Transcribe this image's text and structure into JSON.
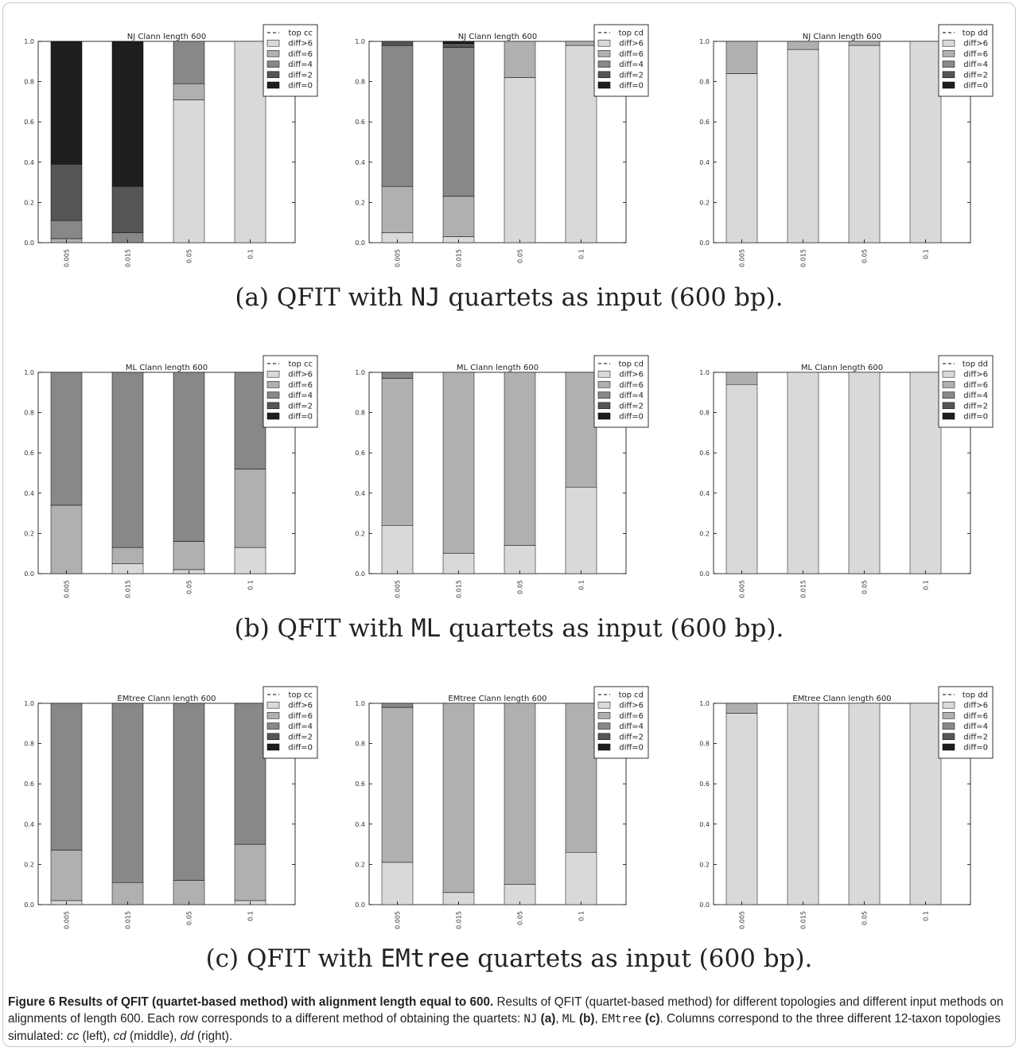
{
  "figure": {
    "rows": [
      {
        "subcaption_pre": "(a) QFIT with ",
        "subcaption_mono": "NJ",
        "subcaption_post": " quartets as input (600 bp).",
        "charts": [
          {
            "title": "NJ Clann length 600",
            "legend_top": "top cc"
          },
          {
            "title": "NJ Clann length 600",
            "legend_top": "top cd"
          },
          {
            "title": "NJ Clann length 600",
            "legend_top": "top dd"
          }
        ]
      },
      {
        "subcaption_pre": "(b) QFIT with ",
        "subcaption_mono": "ML",
        "subcaption_post": " quartets as input (600 bp).",
        "charts": [
          {
            "title": "ML Clann length 600",
            "legend_top": "top cc"
          },
          {
            "title": "ML Clann length 600",
            "legend_top": "top cd"
          },
          {
            "title": "ML Clann length 600",
            "legend_top": "top dd"
          }
        ]
      },
      {
        "subcaption_pre": "(c) QFIT with ",
        "subcaption_mono": "EMtree",
        "subcaption_post": " quartets as input (600 bp).",
        "charts": [
          {
            "title": "EMtree Clann length 600",
            "legend_top": "top cc"
          },
          {
            "title": "EMtree Clann length 600",
            "legend_top": "top cd"
          },
          {
            "title": "EMtree Clann length 600",
            "legend_top": "top dd"
          }
        ]
      }
    ],
    "colors": {
      "diff>6": "#d9d9d9",
      "diff=6": "#b0b0b0",
      "diff=4": "#888888",
      "diff=2": "#555555",
      "diff=0": "#1e1e1e"
    }
  },
  "chart_data": [
    {
      "type": "bar",
      "title": "NJ Clann length 600",
      "categories": [
        "0.005",
        "0.015",
        "0.05",
        "0.1"
      ],
      "ylim": [
        0,
        1
      ],
      "yticks": [
        "0.0",
        "0.2",
        "0.4",
        "0.6",
        "0.8",
        "1.0"
      ],
      "legend": [
        "top cc",
        "diff>6",
        "diff=6",
        "diff=4",
        "diff=2",
        "diff=0"
      ],
      "legend_position": "top-right",
      "series": [
        {
          "name": "diff>6",
          "values": [
            0.0,
            0.0,
            0.71,
            1.0
          ]
        },
        {
          "name": "diff=6",
          "values": [
            0.02,
            0.0,
            0.08,
            0.0
          ]
        },
        {
          "name": "diff=4",
          "values": [
            0.09,
            0.05,
            0.21,
            0.0
          ]
        },
        {
          "name": "diff=2",
          "values": [
            0.28,
            0.23,
            0.0,
            0.0
          ]
        },
        {
          "name": "diff=0",
          "values": [
            0.61,
            0.72,
            0.0,
            0.0
          ]
        }
      ]
    },
    {
      "type": "bar",
      "title": "NJ Clann length 600",
      "categories": [
        "0.005",
        "0.015",
        "0.05",
        "0.1"
      ],
      "ylim": [
        0,
        1
      ],
      "yticks": [
        "0.0",
        "0.2",
        "0.4",
        "0.6",
        "0.8",
        "1.0"
      ],
      "legend": [
        "top cd",
        "diff>6",
        "diff=6",
        "diff=4",
        "diff=2",
        "diff=0"
      ],
      "legend_position": "top-right",
      "series": [
        {
          "name": "diff>6",
          "values": [
            0.05,
            0.03,
            0.82,
            0.98
          ]
        },
        {
          "name": "diff=6",
          "values": [
            0.23,
            0.2,
            0.18,
            0.02
          ]
        },
        {
          "name": "diff=4",
          "values": [
            0.7,
            0.74,
            0.0,
            0.0
          ]
        },
        {
          "name": "diff=2",
          "values": [
            0.02,
            0.02,
            0.0,
            0.0
          ]
        },
        {
          "name": "diff=0",
          "values": [
            0.0,
            0.01,
            0.0,
            0.0
          ]
        }
      ]
    },
    {
      "type": "bar",
      "title": "NJ Clann length 600",
      "categories": [
        "0.005",
        "0.015",
        "0.05",
        "0.1"
      ],
      "ylim": [
        0,
        1
      ],
      "yticks": [
        "0.0",
        "0.2",
        "0.4",
        "0.6",
        "0.8",
        "1.0"
      ],
      "legend": [
        "top dd",
        "diff>6",
        "diff=6",
        "diff=4",
        "diff=2",
        "diff=0"
      ],
      "legend_position": "top-right",
      "series": [
        {
          "name": "diff>6",
          "values": [
            0.84,
            0.96,
            0.98,
            1.0
          ]
        },
        {
          "name": "diff=6",
          "values": [
            0.16,
            0.04,
            0.02,
            0.0
          ]
        },
        {
          "name": "diff=4",
          "values": [
            0.0,
            0.0,
            0.0,
            0.0
          ]
        },
        {
          "name": "diff=2",
          "values": [
            0.0,
            0.0,
            0.0,
            0.0
          ]
        },
        {
          "name": "diff=0",
          "values": [
            0.0,
            0.0,
            0.0,
            0.0
          ]
        }
      ]
    },
    {
      "type": "bar",
      "title": "ML Clann length 600",
      "categories": [
        "0.005",
        "0.015",
        "0.05",
        "0.1"
      ],
      "ylim": [
        0,
        1
      ],
      "yticks": [
        "0.0",
        "0.2",
        "0.4",
        "0.6",
        "0.8",
        "1.0"
      ],
      "legend": [
        "top cc",
        "diff>6",
        "diff=6",
        "diff=4",
        "diff=2",
        "diff=0"
      ],
      "legend_position": "top-right",
      "series": [
        {
          "name": "diff>6",
          "values": [
            0.0,
            0.05,
            0.02,
            0.13
          ]
        },
        {
          "name": "diff=6",
          "values": [
            0.34,
            0.08,
            0.14,
            0.39
          ]
        },
        {
          "name": "diff=4",
          "values": [
            0.66,
            0.87,
            0.84,
            0.48
          ]
        },
        {
          "name": "diff=2",
          "values": [
            0.0,
            0.0,
            0.0,
            0.0
          ]
        },
        {
          "name": "diff=0",
          "values": [
            0.0,
            0.0,
            0.0,
            0.0
          ]
        }
      ]
    },
    {
      "type": "bar",
      "title": "ML Clann length 600",
      "categories": [
        "0.005",
        "0.015",
        "0.05",
        "0.1"
      ],
      "ylim": [
        0,
        1
      ],
      "yticks": [
        "0.0",
        "0.2",
        "0.4",
        "0.6",
        "0.8",
        "1.0"
      ],
      "legend": [
        "top cd",
        "diff>6",
        "diff=6",
        "diff=4",
        "diff=2",
        "diff=0"
      ],
      "legend_position": "top-right",
      "series": [
        {
          "name": "diff>6",
          "values": [
            0.24,
            0.1,
            0.14,
            0.43
          ]
        },
        {
          "name": "diff=6",
          "values": [
            0.73,
            0.9,
            0.86,
            0.57
          ]
        },
        {
          "name": "diff=4",
          "values": [
            0.03,
            0.0,
            0.0,
            0.0
          ]
        },
        {
          "name": "diff=2",
          "values": [
            0.0,
            0.0,
            0.0,
            0.0
          ]
        },
        {
          "name": "diff=0",
          "values": [
            0.0,
            0.0,
            0.0,
            0.0
          ]
        }
      ]
    },
    {
      "type": "bar",
      "title": "ML Clann length 600",
      "categories": [
        "0.005",
        "0.015",
        "0.05",
        "0.1"
      ],
      "ylim": [
        0,
        1
      ],
      "yticks": [
        "0.0",
        "0.2",
        "0.4",
        "0.6",
        "0.8",
        "1.0"
      ],
      "legend": [
        "top dd",
        "diff>6",
        "diff=6",
        "diff=4",
        "diff=2",
        "diff=0"
      ],
      "legend_position": "top-right",
      "series": [
        {
          "name": "diff>6",
          "values": [
            0.94,
            1.0,
            1.0,
            1.0
          ]
        },
        {
          "name": "diff=6",
          "values": [
            0.06,
            0.0,
            0.0,
            0.0
          ]
        },
        {
          "name": "diff=4",
          "values": [
            0.0,
            0.0,
            0.0,
            0.0
          ]
        },
        {
          "name": "diff=2",
          "values": [
            0.0,
            0.0,
            0.0,
            0.0
          ]
        },
        {
          "name": "diff=0",
          "values": [
            0.0,
            0.0,
            0.0,
            0.0
          ]
        }
      ]
    },
    {
      "type": "bar",
      "title": "EMtree Clann length 600",
      "categories": [
        "0.005",
        "0.015",
        "0.05",
        "0.1"
      ],
      "ylim": [
        0,
        1
      ],
      "yticks": [
        "0.0",
        "0.2",
        "0.4",
        "0.6",
        "0.8",
        "1.0"
      ],
      "legend": [
        "top cc",
        "diff>6",
        "diff=6",
        "diff=4",
        "diff=2",
        "diff=0"
      ],
      "legend_position": "top-right",
      "series": [
        {
          "name": "diff>6",
          "values": [
            0.02,
            0.0,
            0.0,
            0.02
          ]
        },
        {
          "name": "diff=6",
          "values": [
            0.25,
            0.11,
            0.12,
            0.28
          ]
        },
        {
          "name": "diff=4",
          "values": [
            0.73,
            0.89,
            0.88,
            0.7
          ]
        },
        {
          "name": "diff=2",
          "values": [
            0.0,
            0.0,
            0.0,
            0.0
          ]
        },
        {
          "name": "diff=0",
          "values": [
            0.0,
            0.0,
            0.0,
            0.0
          ]
        }
      ]
    },
    {
      "type": "bar",
      "title": "EMtree Clann length 600",
      "categories": [
        "0.005",
        "0.015",
        "0.05",
        "0.1"
      ],
      "ylim": [
        0,
        1
      ],
      "yticks": [
        "0.0",
        "0.2",
        "0.4",
        "0.6",
        "0.8",
        "1.0"
      ],
      "legend": [
        "top cd",
        "diff>6",
        "diff=6",
        "diff=4",
        "diff=2",
        "diff=0"
      ],
      "legend_position": "top-right",
      "series": [
        {
          "name": "diff>6",
          "values": [
            0.21,
            0.06,
            0.1,
            0.26
          ]
        },
        {
          "name": "diff=6",
          "values": [
            0.77,
            0.94,
            0.9,
            0.74
          ]
        },
        {
          "name": "diff=4",
          "values": [
            0.02,
            0.0,
            0.0,
            0.0
          ]
        },
        {
          "name": "diff=2",
          "values": [
            0.0,
            0.0,
            0.0,
            0.0
          ]
        },
        {
          "name": "diff=0",
          "values": [
            0.0,
            0.0,
            0.0,
            0.0
          ]
        }
      ]
    },
    {
      "type": "bar",
      "title": "EMtree Clann length 600",
      "categories": [
        "0.005",
        "0.015",
        "0.05",
        "0.1"
      ],
      "ylim": [
        0,
        1
      ],
      "yticks": [
        "0.0",
        "0.2",
        "0.4",
        "0.6",
        "0.8",
        "1.0"
      ],
      "legend": [
        "top dd",
        "diff>6",
        "diff=6",
        "diff=4",
        "diff=2",
        "diff=0"
      ],
      "legend_position": "top-right",
      "series": [
        {
          "name": "diff>6",
          "values": [
            0.95,
            1.0,
            1.0,
            1.0
          ]
        },
        {
          "name": "diff=6",
          "values": [
            0.05,
            0.0,
            0.0,
            0.0
          ]
        },
        {
          "name": "diff=4",
          "values": [
            0.0,
            0.0,
            0.0,
            0.0
          ]
        },
        {
          "name": "diff=2",
          "values": [
            0.0,
            0.0,
            0.0,
            0.0
          ]
        },
        {
          "name": "diff=0",
          "values": [
            0.0,
            0.0,
            0.0,
            0.0
          ]
        }
      ]
    }
  ],
  "caption": {
    "title": "Figure 6 Results of QFIT (quartet-based method) with alignment length equal to 600.",
    "t1": " Results of QFIT (quartet-based method) for different topologies and different input methods on alignments of length 600. Each row corresponds to a different method of obtaining the quartets: ",
    "m1": "NJ",
    "b1": "(a)",
    "t2": ", ",
    "m2": "ML",
    "b2": "(b)",
    "t3": ", ",
    "m3": "EMtree",
    "b3": "(c)",
    "t4": ". Columns correspond to the three different 12-taxon topologies simulated: ",
    "e1": "cc",
    "t5": " (left), ",
    "e2": "cd",
    "t6": " (middle), ",
    "e3": "dd",
    "t7": " (right)."
  }
}
